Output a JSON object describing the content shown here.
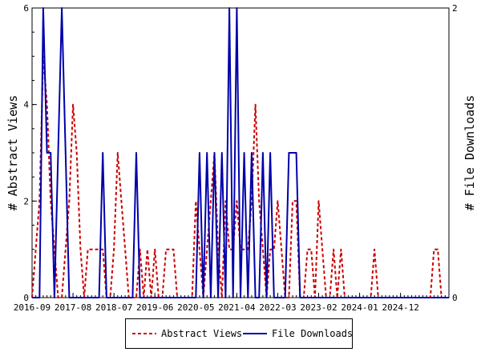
{
  "chart_data": {
    "type": "line",
    "x_tick_labels": [
      "2016-09",
      "2017-08",
      "2018-07",
      "2019-06",
      "2020-05",
      "2021-04",
      "2022-03",
      "2023-02",
      "2024-01",
      "2024-12"
    ],
    "y_left_label": "# Abstract Views",
    "y_right_label": "# File Downloads",
    "y_left_ticks": [
      "0",
      "2",
      "4",
      "6"
    ],
    "y_right_ticks": [
      "0",
      "2"
    ],
    "y_left_lim": [
      0,
      6
    ],
    "y_right_lim": [
      0,
      2
    ],
    "grid": false,
    "legend_position": "bottom",
    "series": [
      {
        "name": "Abstract Views",
        "axis": "left",
        "color": "#cc0000",
        "dash": "dashed",
        "points": [
          [
            0,
            0
          ],
          [
            1,
            1
          ],
          [
            2,
            2
          ],
          [
            3,
            5
          ],
          [
            4,
            4
          ],
          [
            5,
            2
          ],
          [
            6,
            1
          ],
          [
            7,
            0
          ],
          [
            8,
            0
          ],
          [
            9,
            1
          ],
          [
            10,
            2
          ],
          [
            11,
            4
          ],
          [
            12,
            3
          ],
          [
            13,
            1
          ],
          [
            14,
            0
          ],
          [
            15,
            1
          ],
          [
            16,
            1
          ],
          [
            17,
            1
          ],
          [
            18,
            1
          ],
          [
            19,
            1
          ],
          [
            20,
            0
          ],
          [
            21,
            0
          ],
          [
            22,
            1
          ],
          [
            23,
            3
          ],
          [
            24,
            2
          ],
          [
            25,
            1
          ],
          [
            26,
            0
          ],
          [
            27,
            0
          ],
          [
            28,
            0
          ],
          [
            29,
            1
          ],
          [
            30,
            0
          ],
          [
            31,
            1
          ],
          [
            32,
            0
          ],
          [
            33,
            1
          ],
          [
            34,
            0
          ],
          [
            35,
            0
          ],
          [
            36,
            1
          ],
          [
            37,
            1
          ],
          [
            38,
            1
          ],
          [
            39,
            0
          ],
          [
            40,
            0
          ],
          [
            41,
            0
          ],
          [
            42,
            0
          ],
          [
            43,
            0
          ],
          [
            44,
            2
          ],
          [
            45,
            1
          ],
          [
            46,
            0
          ],
          [
            47,
            1
          ],
          [
            48,
            2
          ],
          [
            49,
            3
          ],
          [
            50,
            1
          ],
          [
            51,
            0
          ],
          [
            52,
            2
          ],
          [
            53,
            1
          ],
          [
            54,
            1
          ],
          [
            55,
            2
          ],
          [
            56,
            1
          ],
          [
            57,
            1
          ],
          [
            58,
            1
          ],
          [
            59,
            2
          ],
          [
            60,
            4
          ],
          [
            61,
            2
          ],
          [
            62,
            1
          ],
          [
            63,
            0
          ],
          [
            64,
            1
          ],
          [
            65,
            1
          ],
          [
            66,
            2
          ],
          [
            67,
            1
          ],
          [
            68,
            0
          ],
          [
            69,
            0
          ],
          [
            70,
            2
          ],
          [
            71,
            2
          ],
          [
            72,
            0
          ],
          [
            73,
            0
          ],
          [
            74,
            1
          ],
          [
            75,
            1
          ],
          [
            76,
            0
          ],
          [
            77,
            2
          ],
          [
            78,
            1
          ],
          [
            79,
            0
          ],
          [
            80,
            0
          ],
          [
            81,
            1
          ],
          [
            82,
            0
          ],
          [
            83,
            1
          ],
          [
            84,
            0
          ],
          [
            85,
            0
          ],
          [
            86,
            0
          ],
          [
            87,
            0
          ],
          [
            88,
            0
          ],
          [
            89,
            0
          ],
          [
            90,
            0
          ],
          [
            91,
            0
          ],
          [
            92,
            1
          ],
          [
            93,
            0
          ],
          [
            94,
            0
          ],
          [
            95,
            0
          ],
          [
            96,
            0
          ],
          [
            97,
            0
          ],
          [
            98,
            0
          ],
          [
            99,
            0
          ],
          [
            100,
            0
          ],
          [
            101,
            0
          ],
          [
            102,
            0
          ],
          [
            103,
            0
          ],
          [
            104,
            0
          ],
          [
            105,
            0
          ],
          [
            106,
            0
          ],
          [
            107,
            0
          ],
          [
            108,
            1
          ],
          [
            109,
            1
          ],
          [
            110,
            0
          ],
          [
            111,
            0
          ],
          [
            112,
            0
          ]
        ]
      },
      {
        "name": "File Downloads",
        "axis": "right",
        "color": "#0000aa",
        "dash": "solid",
        "points": [
          [
            0,
            0
          ],
          [
            1,
            0
          ],
          [
            2,
            0
          ],
          [
            3,
            2
          ],
          [
            4,
            1
          ],
          [
            5,
            1
          ],
          [
            6,
            0
          ],
          [
            7,
            1
          ],
          [
            8,
            2
          ],
          [
            9,
            1
          ],
          [
            10,
            0
          ],
          [
            11,
            0
          ],
          [
            12,
            0
          ],
          [
            13,
            0
          ],
          [
            14,
            0
          ],
          [
            15,
            0
          ],
          [
            16,
            0
          ],
          [
            17,
            0
          ],
          [
            18,
            0
          ],
          [
            19,
            1
          ],
          [
            20,
            0
          ],
          [
            21,
            0
          ],
          [
            22,
            0
          ],
          [
            23,
            0
          ],
          [
            24,
            0
          ],
          [
            25,
            0
          ],
          [
            26,
            0
          ],
          [
            27,
            0
          ],
          [
            28,
            1
          ],
          [
            29,
            0
          ],
          [
            30,
            0
          ],
          [
            31,
            0
          ],
          [
            32,
            0
          ],
          [
            33,
            0
          ],
          [
            34,
            0
          ],
          [
            35,
            0
          ],
          [
            36,
            0
          ],
          [
            37,
            0
          ],
          [
            38,
            0
          ],
          [
            39,
            0
          ],
          [
            40,
            0
          ],
          [
            41,
            0
          ],
          [
            42,
            0
          ],
          [
            43,
            0
          ],
          [
            44,
            0
          ],
          [
            45,
            1
          ],
          [
            46,
            0
          ],
          [
            47,
            1
          ],
          [
            48,
            0
          ],
          [
            49,
            1
          ],
          [
            50,
            0
          ],
          [
            51,
            1
          ],
          [
            52,
            0
          ],
          [
            53,
            2
          ],
          [
            54,
            0
          ],
          [
            55,
            2
          ],
          [
            56,
            0
          ],
          [
            57,
            1
          ],
          [
            58,
            0
          ],
          [
            59,
            1
          ],
          [
            60,
            0
          ],
          [
            61,
            0
          ],
          [
            62,
            1
          ],
          [
            63,
            0
          ],
          [
            64,
            1
          ],
          [
            65,
            0
          ],
          [
            66,
            0
          ],
          [
            67,
            0
          ],
          [
            68,
            0
          ],
          [
            69,
            1
          ],
          [
            70,
            1
          ],
          [
            71,
            1
          ],
          [
            72,
            0
          ],
          [
            73,
            0
          ],
          [
            74,
            0
          ],
          [
            75,
            0
          ],
          [
            76,
            0
          ],
          [
            77,
            0
          ],
          [
            78,
            0
          ],
          [
            79,
            0
          ],
          [
            80,
            0
          ],
          [
            81,
            0
          ],
          [
            82,
            0
          ],
          [
            83,
            0
          ],
          [
            84,
            0
          ],
          [
            85,
            0
          ],
          [
            86,
            0
          ],
          [
            87,
            0
          ],
          [
            88,
            0
          ],
          [
            89,
            0
          ],
          [
            90,
            0
          ],
          [
            91,
            0
          ],
          [
            92,
            0
          ],
          [
            93,
            0
          ],
          [
            94,
            0
          ],
          [
            95,
            0
          ],
          [
            96,
            0
          ],
          [
            97,
            0
          ],
          [
            98,
            0
          ],
          [
            99,
            0
          ],
          [
            100,
            0
          ],
          [
            101,
            0
          ],
          [
            102,
            0
          ],
          [
            103,
            0
          ],
          [
            104,
            0
          ],
          [
            105,
            0
          ],
          [
            106,
            0
          ],
          [
            107,
            0
          ],
          [
            108,
            0
          ],
          [
            109,
            0
          ],
          [
            110,
            0
          ],
          [
            111,
            0
          ],
          [
            112,
            0
          ]
        ]
      }
    ]
  },
  "legend": {
    "abstract_label": "Abstract Views",
    "downloads_label": "File Downloads"
  }
}
